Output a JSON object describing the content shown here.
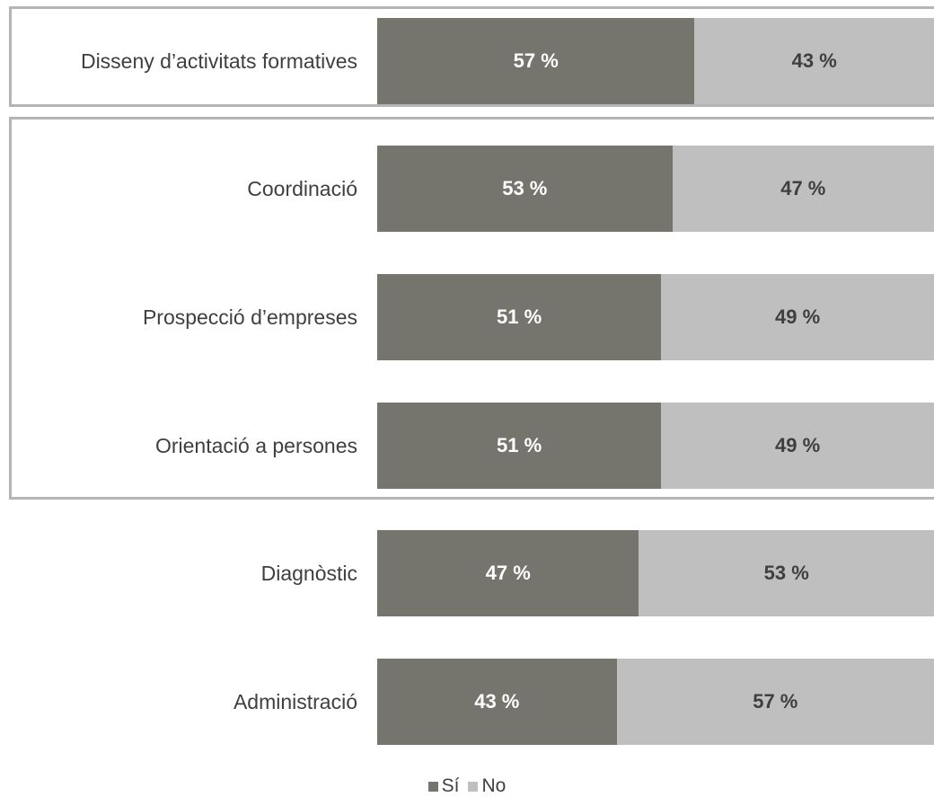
{
  "chart_data": {
    "type": "bar",
    "orientation": "horizontal",
    "stacked": true,
    "categories": [
      "Disseny d’activitats formatives",
      "Coordinació",
      "Prospecció d’empreses",
      "Orientació a persones",
      "Diagnòstic",
      "Administració"
    ],
    "series": [
      {
        "name": "Sí",
        "color": "#75756d",
        "values": [
          57,
          53,
          51,
          51,
          47,
          43
        ],
        "labels": [
          "57 %",
          "53 %",
          "51 %",
          "51 %",
          "47 %",
          "43 %"
        ]
      },
      {
        "name": "No",
        "color": "#bfbfbf",
        "values": [
          43,
          47,
          49,
          49,
          53,
          57
        ],
        "labels": [
          "43 %",
          "47 %",
          "49 %",
          "49 %",
          "53 %",
          "57 %"
        ]
      }
    ],
    "xlim": [
      0,
      100
    ],
    "grid": false,
    "legend_position": "bottom",
    "groups": [
      {
        "categories": [
          "Disseny d’activitats formatives"
        ],
        "framed": true
      },
      {
        "categories": [
          "Coordinació",
          "Prospecció d’empreses",
          "Orientació a persones"
        ],
        "framed": true
      },
      {
        "categories": [
          "Diagnòstic",
          "Administració"
        ],
        "framed": false
      }
    ]
  }
}
